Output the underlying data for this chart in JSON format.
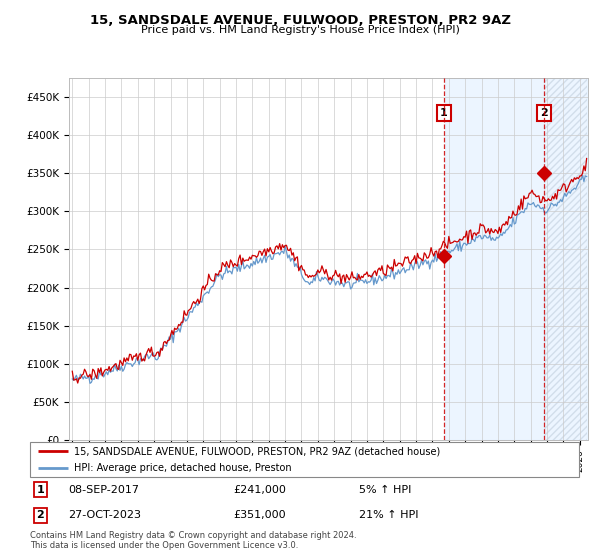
{
  "title1": "15, SANDSDALE AVENUE, FULWOOD, PRESTON, PR2 9AZ",
  "title2": "Price paid vs. HM Land Registry's House Price Index (HPI)",
  "legend1": "15, SANDSDALE AVENUE, FULWOOD, PRESTON, PR2 9AZ (detached house)",
  "legend2": "HPI: Average price, detached house, Preston",
  "annotation1_label": "1",
  "annotation1_date": "08-SEP-2017",
  "annotation1_price": "£241,000",
  "annotation1_hpi": "5% ↑ HPI",
  "annotation2_label": "2",
  "annotation2_date": "27-OCT-2023",
  "annotation2_price": "£351,000",
  "annotation2_hpi": "21% ↑ HPI",
  "footer": "Contains HM Land Registry data © Crown copyright and database right 2024.\nThis data is licensed under the Open Government Licence v3.0.",
  "point1_x": 2017.69,
  "point1_y": 241000,
  "point2_x": 2023.83,
  "point2_y": 351000,
  "color_property": "#cc0000",
  "color_hpi": "#6699cc",
  "color_shade1": "#ddeeff",
  "ylim": [
    0,
    475000
  ],
  "xlim": [
    1994.8,
    2026.5
  ]
}
